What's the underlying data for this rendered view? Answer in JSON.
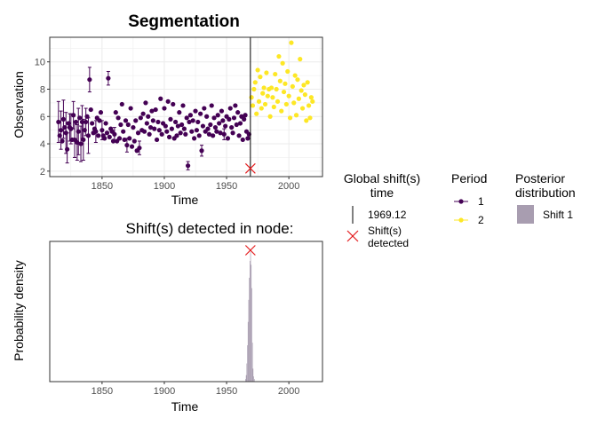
{
  "colors": {
    "period1": "#440154",
    "period2": "#FDE725",
    "shift": "#E41A1C",
    "posterior": "#A89DB0",
    "grid": "#EBEBEB",
    "panel_border": "#333333"
  },
  "chart_data": [
    {
      "type": "scatter",
      "title": "Segmentation",
      "xlabel": "Time",
      "ylabel": "Observation",
      "xlim": [
        1808,
        2027
      ],
      "ylim": [
        1.6,
        11.8
      ],
      "x_ticks": [
        1850,
        1900,
        1950,
        2000
      ],
      "y_ticks": [
        2,
        4,
        6,
        8,
        10
      ],
      "grid": true,
      "shift_time": 1969.12,
      "shift_marker_y": 2.2,
      "series": [
        {
          "name": "1",
          "error_bars": [
            [
              1815,
              4.1,
              7.1
            ],
            [
              1817,
              3.6,
              6.4
            ],
            [
              1819,
              4.4,
              7.2
            ],
            [
              1821,
              3.3,
              6.3
            ],
            [
              1822,
              2.6,
              4.8
            ],
            [
              1824,
              4.2,
              6.2
            ],
            [
              1825,
              4.0,
              6.2
            ],
            [
              1827,
              5.1,
              7.1
            ],
            [
              1828,
              3.0,
              5.6
            ],
            [
              1830,
              2.8,
              5.4
            ],
            [
              1831,
              3.2,
              6.6
            ],
            [
              1833,
              2.7,
              5.3
            ],
            [
              1834,
              4.4,
              6.8
            ],
            [
              1835,
              2.8,
              5.8
            ],
            [
              1837,
              4.6,
              6.6
            ],
            [
              1839,
              3.3,
              5.9
            ],
            [
              1840,
              7.8,
              9.6
            ],
            [
              1855,
              8.3,
              9.3
            ],
            [
              1845,
              4.1,
              5.7
            ],
            [
              1850,
              4.3,
              5.7
            ],
            [
              1860,
              4.2,
              5.2
            ],
            [
              1870,
              3.4,
              4.4
            ],
            [
              1880,
              3.2,
              4.2
            ],
            [
              1919,
              2.1,
              2.7
            ],
            [
              1930,
              3.1,
              3.9
            ],
            [
              1948,
              4.3,
              5.1
            ]
          ],
          "points": [
            [
              1815,
              5.6
            ],
            [
              1816,
              4.6
            ],
            [
              1817,
              5.0
            ],
            [
              1818,
              4.2
            ],
            [
              1819,
              5.8
            ],
            [
              1820,
              5.2
            ],
            [
              1821,
              4.8
            ],
            [
              1822,
              3.6
            ],
            [
              1823,
              5.5
            ],
            [
              1824,
              5.2
            ],
            [
              1825,
              5.1
            ],
            [
              1826,
              4.3
            ],
            [
              1827,
              6.1
            ],
            [
              1828,
              4.3
            ],
            [
              1829,
              5.6
            ],
            [
              1830,
              4.1
            ],
            [
              1831,
              4.9
            ],
            [
              1832,
              5.9
            ],
            [
              1833,
              4.0
            ],
            [
              1834,
              5.6
            ],
            [
              1835,
              4.3
            ],
            [
              1836,
              5.0
            ],
            [
              1837,
              5.6
            ],
            [
              1838,
              6.0
            ],
            [
              1839,
              4.6
            ],
            [
              1840,
              8.7
            ],
            [
              1841,
              6.5
            ],
            [
              1842,
              5.5
            ],
            [
              1843,
              4.8
            ],
            [
              1844,
              5.1
            ],
            [
              1845,
              4.9
            ],
            [
              1846,
              5.9
            ],
            [
              1847,
              4.6
            ],
            [
              1848,
              5.7
            ],
            [
              1849,
              6.3
            ],
            [
              1850,
              5.0
            ],
            [
              1851,
              4.6
            ],
            [
              1852,
              4.4
            ],
            [
              1853,
              5.5
            ],
            [
              1854,
              4.8
            ],
            [
              1855,
              8.8
            ],
            [
              1856,
              4.5
            ],
            [
              1857,
              5.1
            ],
            [
              1858,
              4.9
            ],
            [
              1859,
              4.2
            ],
            [
              1860,
              4.7
            ],
            [
              1861,
              6.3
            ],
            [
              1862,
              4.2
            ],
            [
              1863,
              5.9
            ],
            [
              1864,
              4.4
            ],
            [
              1865,
              5.4
            ],
            [
              1866,
              6.9
            ],
            [
              1867,
              4.9
            ],
            [
              1868,
              4.3
            ],
            [
              1869,
              5.7
            ],
            [
              1870,
              3.9
            ],
            [
              1871,
              5.4
            ],
            [
              1872,
              4.4
            ],
            [
              1873,
              6.6
            ],
            [
              1874,
              3.8
            ],
            [
              1875,
              5.2
            ],
            [
              1876,
              4.2
            ],
            [
              1877,
              5.7
            ],
            [
              1878,
              3.5
            ],
            [
              1879,
              4.8
            ],
            [
              1880,
              3.7
            ],
            [
              1881,
              5.9
            ],
            [
              1882,
              5.0
            ],
            [
              1883,
              6.2
            ],
            [
              1884,
              4.9
            ],
            [
              1885,
              7.0
            ],
            [
              1886,
              5.5
            ],
            [
              1887,
              6.0
            ],
            [
              1888,
              4.7
            ],
            [
              1889,
              5.2
            ],
            [
              1890,
              6.4
            ],
            [
              1891,
              5.7
            ],
            [
              1892,
              5.1
            ],
            [
              1893,
              6.5
            ],
            [
              1894,
              4.3
            ],
            [
              1895,
              5.6
            ],
            [
              1896,
              5.0
            ],
            [
              1897,
              7.3
            ],
            [
              1898,
              4.7
            ],
            [
              1899,
              5.5
            ],
            [
              1900,
              6.6
            ],
            [
              1901,
              5.3
            ],
            [
              1902,
              4.9
            ],
            [
              1903,
              7.1
            ],
            [
              1904,
              4.5
            ],
            [
              1905,
              5.8
            ],
            [
              1906,
              5.1
            ],
            [
              1907,
              6.9
            ],
            [
              1908,
              4.4
            ],
            [
              1909,
              5.6
            ],
            [
              1910,
              4.6
            ],
            [
              1911,
              5.3
            ],
            [
              1912,
              6.3
            ],
            [
              1913,
              4.8
            ],
            [
              1914,
              5.4
            ],
            [
              1915,
              6.8
            ],
            [
              1916,
              5.1
            ],
            [
              1917,
              4.7
            ],
            [
              1918,
              5.9
            ],
            [
              1919,
              2.4
            ],
            [
              1920,
              5.6
            ],
            [
              1921,
              6.1
            ],
            [
              1922,
              4.9
            ],
            [
              1923,
              5.7
            ],
            [
              1924,
              4.4
            ],
            [
              1925,
              6.4
            ],
            [
              1926,
              5.0
            ],
            [
              1927,
              5.6
            ],
            [
              1928,
              4.6
            ],
            [
              1929,
              6.2
            ],
            [
              1930,
              3.5
            ],
            [
              1931,
              5.3
            ],
            [
              1932,
              6.6
            ],
            [
              1933,
              4.9
            ],
            [
              1934,
              6.0
            ],
            [
              1935,
              5.1
            ],
            [
              1936,
              4.7
            ],
            [
              1937,
              5.4
            ],
            [
              1938,
              6.8
            ],
            [
              1939,
              4.6
            ],
            [
              1940,
              5.9
            ],
            [
              1941,
              5.2
            ],
            [
              1942,
              4.9
            ],
            [
              1943,
              6.1
            ],
            [
              1944,
              5.5
            ],
            [
              1945,
              4.8
            ],
            [
              1946,
              6.4
            ],
            [
              1947,
              5.7
            ],
            [
              1948,
              4.7
            ],
            [
              1949,
              5.3
            ],
            [
              1950,
              6.0
            ],
            [
              1951,
              4.4
            ],
            [
              1952,
              5.8
            ],
            [
              1953,
              6.6
            ],
            [
              1954,
              5.2
            ],
            [
              1955,
              4.8
            ],
            [
              1956,
              5.9
            ],
            [
              1957,
              6.8
            ],
            [
              1958,
              5.4
            ],
            [
              1959,
              6.3
            ],
            [
              1960,
              4.6
            ],
            [
              1961,
              5.5
            ],
            [
              1962,
              6.0
            ],
            [
              1963,
              4.3
            ],
            [
              1964,
              5.8
            ],
            [
              1965,
              6.1
            ],
            [
              1966,
              4.9
            ],
            [
              1967,
              4.4
            ],
            [
              1968,
              4.7
            ]
          ]
        },
        {
          "name": "2",
          "points": [
            [
              1970,
              7.4
            ],
            [
              1971,
              6.8
            ],
            [
              1972,
              8.0
            ],
            [
              1973,
              8.5
            ],
            [
              1974,
              6.2
            ],
            [
              1975,
              9.4
            ],
            [
              1976,
              7.1
            ],
            [
              1977,
              8.9
            ],
            [
              1978,
              6.6
            ],
            [
              1979,
              7.7
            ],
            [
              1980,
              8.1
            ],
            [
              1981,
              6.9
            ],
            [
              1982,
              9.2
            ],
            [
              1983,
              7.5
            ],
            [
              1984,
              8.0
            ],
            [
              1985,
              6.0
            ],
            [
              1986,
              8.1
            ],
            [
              1987,
              7.4
            ],
            [
              1988,
              6.7
            ],
            [
              1989,
              9.1
            ],
            [
              1990,
              8.0
            ],
            [
              1991,
              7.1
            ],
            [
              1992,
              10.4
            ],
            [
              1993,
              8.6
            ],
            [
              1994,
              6.4
            ],
            [
              1995,
              9.9
            ],
            [
              1996,
              7.8
            ],
            [
              1997,
              8.4
            ],
            [
              1998,
              6.9
            ],
            [
              1999,
              9.3
            ],
            [
              2000,
              7.5
            ],
            [
              2001,
              5.9
            ],
            [
              2002,
              11.4
            ],
            [
              2003,
              8.2
            ],
            [
              2004,
              7.0
            ],
            [
              2005,
              9.0
            ],
            [
              2006,
              6.1
            ],
            [
              2007,
              8.7
            ],
            [
              2008,
              7.3
            ],
            [
              2009,
              10.2
            ],
            [
              2010,
              7.9
            ],
            [
              2011,
              6.6
            ],
            [
              2012,
              8.3
            ],
            [
              2013,
              7.6
            ],
            [
              2014,
              5.7
            ],
            [
              2015,
              8.5
            ],
            [
              2016,
              6.8
            ],
            [
              2017,
              5.9
            ],
            [
              2018,
              7.4
            ],
            [
              2019,
              7.1
            ]
          ]
        }
      ]
    },
    {
      "type": "bar",
      "title": "Shift(s) detected in node:",
      "xlabel": "Time",
      "ylabel": "Probability density",
      "xlim": [
        1808,
        2027
      ],
      "x_ticks": [
        1850,
        1900,
        1950,
        2000
      ],
      "grid": false,
      "shift_time": 1969.12,
      "series": [
        {
          "name": "Shift 1",
          "bins": [
            [
              1965.0,
              0.02
            ],
            [
              1965.5,
              0.05
            ],
            [
              1966.0,
              0.14
            ],
            [
              1966.5,
              0.28
            ],
            [
              1967.0,
              0.46
            ],
            [
              1967.5,
              0.63
            ],
            [
              1968.0,
              0.8
            ],
            [
              1968.5,
              0.93
            ],
            [
              1969.0,
              1.0
            ],
            [
              1969.5,
              0.9
            ],
            [
              1970.0,
              0.72
            ],
            [
              1970.5,
              0.3
            ],
            [
              1971.0,
              0.1
            ],
            [
              1971.5,
              0.04
            ],
            [
              1972.0,
              0.02
            ]
          ]
        }
      ]
    }
  ],
  "legend": {
    "shift_title_line1": "Global shift(s)",
    "shift_title_line2": "time",
    "shift_value": "1969.12",
    "shift_detected_line1": "Shift(s)",
    "shift_detected_line2": "detected",
    "period_title": "Period",
    "period_items": [
      "1",
      "2"
    ],
    "posterior_title_line1": "Posterior",
    "posterior_title_line2": "distribution",
    "posterior_item": "Shift 1"
  }
}
